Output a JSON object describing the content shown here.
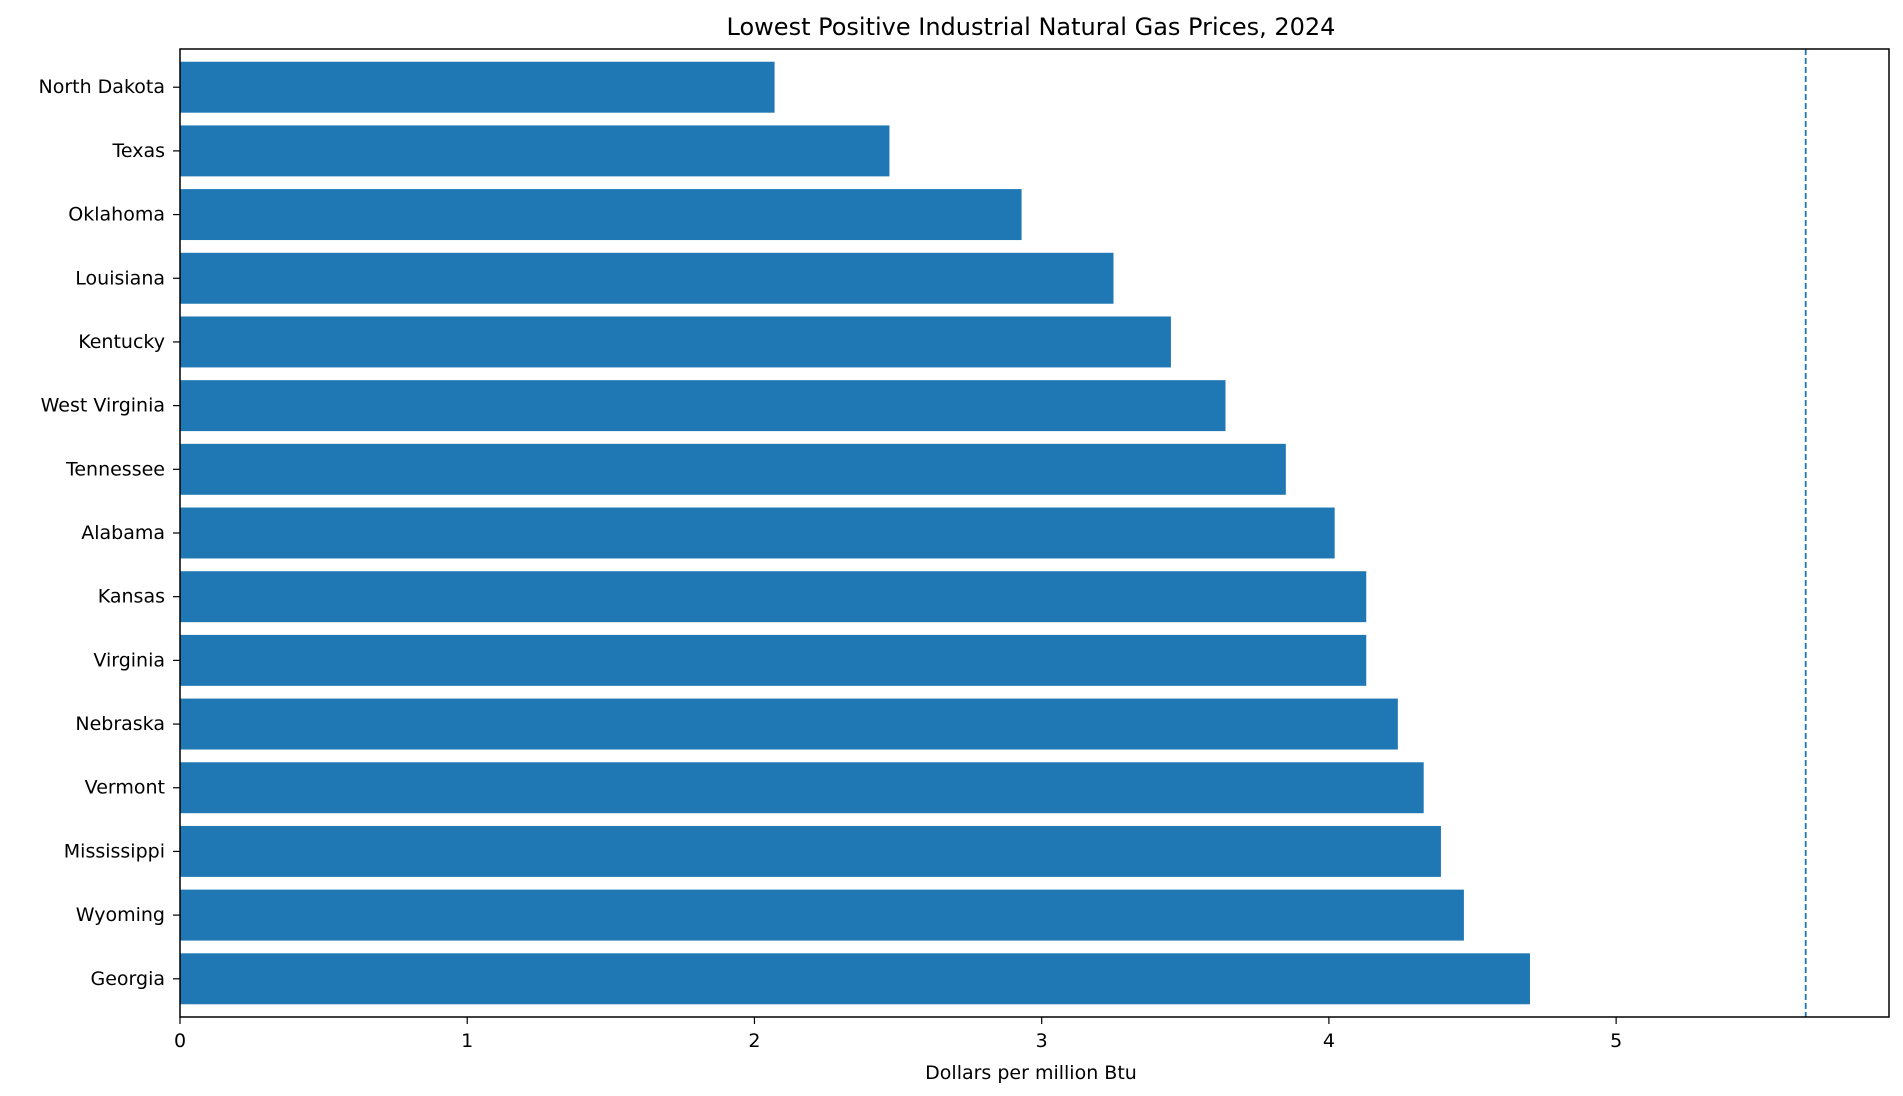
{
  "chart_data": {
    "type": "bar",
    "orientation": "horizontal",
    "title": "Lowest Positive Industrial Natural Gas Prices, 2024",
    "xlabel": "Dollars per million Btu",
    "ylabel": "",
    "categories": [
      "North Dakota",
      "Texas",
      "Oklahoma",
      "Louisiana",
      "Kentucky",
      "West Virginia",
      "Tennessee",
      "Alabama",
      "Kansas",
      "Virginia",
      "Nebraska",
      "Vermont",
      "Mississippi",
      "Wyoming",
      "Georgia"
    ],
    "values": [
      2.07,
      2.47,
      2.93,
      3.25,
      3.45,
      3.64,
      3.85,
      4.02,
      4.13,
      4.13,
      4.24,
      4.33,
      4.39,
      4.47,
      4.7
    ],
    "xlim": [
      0,
      5.95
    ],
    "xticks": [
      0,
      1,
      2,
      3,
      4,
      5
    ],
    "xtick_labels": [
      "0",
      "1",
      "2",
      "3",
      "4",
      "5"
    ],
    "reference_line": {
      "x": 5.66,
      "style": "dashed"
    },
    "bar_color": "#1f77b4",
    "grid": false,
    "legend": "none"
  }
}
